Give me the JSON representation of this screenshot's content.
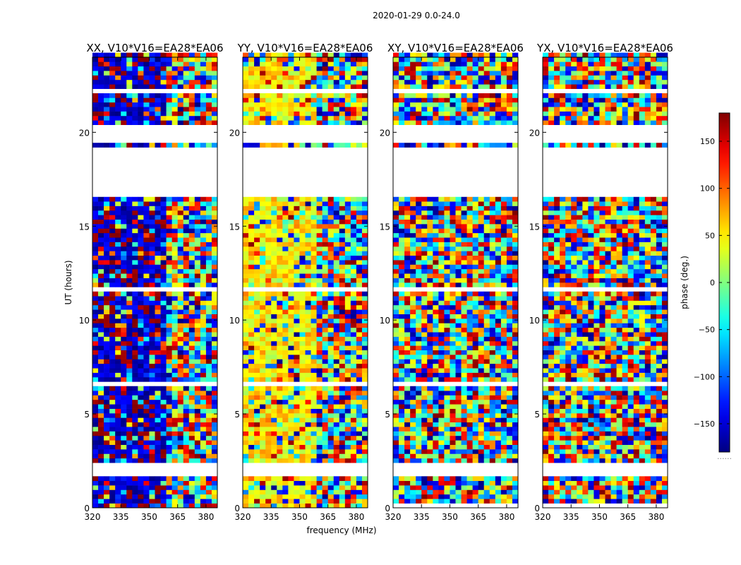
{
  "chart_data": {
    "type": "heatmap",
    "suptitle": "2020-01-29 0.0-24.0",
    "xlabel": "frequency (MHz)",
    "ylabel": "UT (hours)",
    "xlim": [
      320,
      386
    ],
    "ylim": [
      0,
      24
    ],
    "x_ticks": [
      "320",
      "335",
      "350",
      "365",
      "380"
    ],
    "x_tick_values": [
      320,
      335,
      350,
      365,
      380
    ],
    "y_ticks": [
      "0",
      "5",
      "10",
      "15",
      "20"
    ],
    "y_tick_values": [
      0,
      5,
      10,
      15,
      20
    ],
    "colorbar": {
      "label": "phase (deg.)",
      "range": [
        -180,
        180
      ],
      "colormap": "jet",
      "ticks": [
        "150",
        "100",
        "50",
        "0",
        "−50",
        "−100",
        "−150"
      ],
      "tick_values": [
        150,
        100,
        50,
        0,
        -50,
        -100,
        -150
      ],
      "under_marker": "......"
    },
    "panels": [
      {
        "title": "XX, V10*V16=EA28*EA06",
        "coherent_phase_deg": -160
      },
      {
        "title": "YY, V10*V16=EA28*EA06",
        "coherent_phase_deg": 50
      },
      {
        "title": "XY, V10*V16=EA28*EA06",
        "coherent_phase_deg": null
      },
      {
        "title": "YX, V10*V16=EA28*EA06",
        "coherent_phase_deg": null
      }
    ],
    "coherent_band_mhz": [
      320,
      361
    ],
    "gaps_ut_hours": [
      [
        1.55,
        2.35
      ],
      [
        6.35,
        6.6
      ],
      [
        16.5,
        19.1
      ],
      [
        19.3,
        20.25
      ],
      [
        11.4,
        11.55
      ],
      [
        22.0,
        22.2
      ],
      [
        20.4,
        20.5
      ]
    ],
    "partial_gaps_xy_yx_ut_hours": [
      [
        0.0,
        1.05
      ]
    ]
  }
}
